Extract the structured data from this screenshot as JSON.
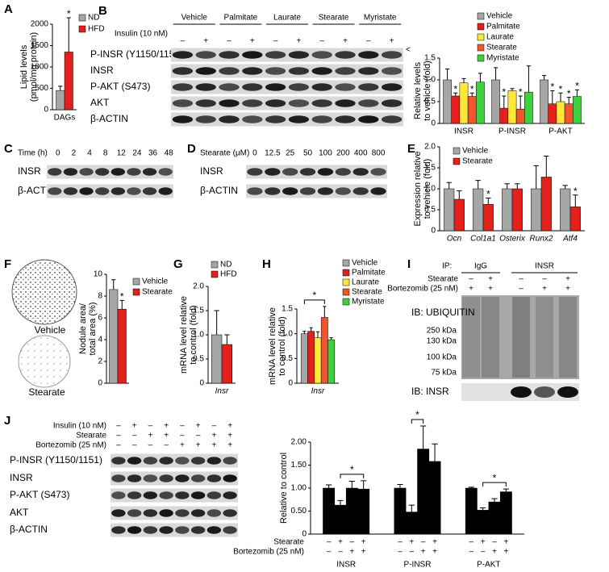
{
  "chart_data": [
    {
      "panel": "A",
      "type": "bar",
      "ylabel": [
        "Lipid levels",
        "(pmol/mg protein)"
      ],
      "categories": [
        "DAGs"
      ],
      "series": [
        {
          "name": "ND",
          "color": "#a6a6a6",
          "values": [
            450
          ],
          "errors": [
            100
          ]
        },
        {
          "name": "HFD",
          "color": "#e3201b",
          "values": [
            1350
          ],
          "errors": [
            800
          ],
          "annotations": [
            "*"
          ]
        }
      ],
      "ylim": [
        0,
        2000
      ],
      "yticks": [
        0,
        500,
        1000,
        1500,
        2000
      ]
    },
    {
      "type": "bar",
      "ylabel": [
        "Relative levels",
        "to vehicle (fold)"
      ],
      "categories": [
        "INSR",
        "P-INSR",
        "P-AKT"
      ],
      "series": [
        {
          "name": "Vehicle",
          "color": "#a6a6a6",
          "values": [
            1.0,
            1.0,
            1.0
          ],
          "errors": [
            0.25,
            0.28,
            0.1
          ]
        },
        {
          "name": "Palmitate",
          "color": "#e3201b",
          "values": [
            0.63,
            0.35,
            0.45
          ],
          "errors": [
            0.07,
            0.28,
            0.3
          ],
          "annotations": [
            "*",
            "*",
            "*"
          ]
        },
        {
          "name": "Laurate",
          "color": "#ffe83a",
          "values": [
            0.93,
            0.75,
            0.5
          ],
          "errors": [
            0.1,
            0.05,
            0.2
          ],
          "annotations": [
            null,
            null,
            "*"
          ]
        },
        {
          "name": "Stearate",
          "color": "#f2552c",
          "values": [
            0.62,
            0.33,
            0.45
          ],
          "errors": [
            0.08,
            0.3,
            0.15
          ],
          "annotations": [
            "*",
            "*",
            "*"
          ]
        },
        {
          "name": "Myristate",
          "color": "#3cd23c",
          "values": [
            0.95,
            0.72,
            0.62
          ],
          "errors": [
            0.2,
            0.6,
            0.15
          ],
          "annotations": [
            null,
            null,
            "*"
          ]
        }
      ],
      "ylim": [
        0,
        1.5
      ],
      "yticks": [
        0,
        0.5,
        {
          "value": 1,
          "label": "1.0"
        },
        1.5
      ]
    },
    {
      "panel": "E",
      "type": "bar",
      "ylabel": [
        "Expression relative",
        "to vehicle (fold)"
      ],
      "categories": [
        "Ocn",
        "Col1a1",
        "Osterix",
        "Runx2",
        "Atf4"
      ],
      "series": [
        {
          "name": "Vehicle",
          "color": "#a6a6a6",
          "values": [
            1.0,
            1.0,
            1.0,
            1.0,
            1.0
          ],
          "errors": [
            0.15,
            0.2,
            0.12,
            0.55,
            0.08
          ]
        },
        {
          "name": "Stearate",
          "color": "#e3201b",
          "values": [
            0.75,
            0.63,
            1.0,
            1.28,
            0.57
          ],
          "errors": [
            0.2,
            0.15,
            0.12,
            0.5,
            0.28
          ],
          "annotations": [
            null,
            "*",
            null,
            null,
            "*"
          ]
        }
      ],
      "ylim": [
        0,
        2
      ],
      "yticks": [
        0,
        0.5,
        {
          "value": 1,
          "label": "1.0"
        },
        1.5,
        {
          "value": 2,
          "label": "2.0"
        }
      ]
    },
    {
      "type": "bar",
      "ylabel": [
        "Nodule area/",
        "total area (%)"
      ],
      "categories": [
        null
      ],
      "series": [
        {
          "name": "Vehicle",
          "color": "#a6a6a6",
          "values": [
            8.6
          ],
          "errors": [
            0.9
          ]
        },
        {
          "name": "Stearate",
          "color": "#e3201b",
          "values": [
            6.8
          ],
          "errors": [
            0.8
          ],
          "annotations": [
            "*"
          ]
        }
      ],
      "ylim": [
        0,
        10
      ],
      "yticks": [
        0,
        2,
        4,
        6,
        8,
        10
      ]
    },
    {
      "panel": "G",
      "type": "bar",
      "ylabel": [
        "mRNA level relative",
        "to control (fold)"
      ],
      "categories": [
        "Insr"
      ],
      "series": [
        {
          "name": "ND",
          "color": "#a6a6a6",
          "values": [
            1.0
          ],
          "errors": [
            0.5
          ]
        },
        {
          "name": "HFD",
          "color": "#e3201b",
          "values": [
            0.8
          ],
          "errors": [
            0.2
          ]
        }
      ],
      "ylim": [
        0,
        2
      ],
      "yticks": [
        0,
        0.5,
        {
          "value": 1,
          "label": "1.0"
        },
        1.5,
        {
          "value": 2,
          "label": "2.0"
        }
      ]
    },
    {
      "panel": "H",
      "type": "bar",
      "ylabel": [
        "mRNA level relative",
        "to control (fold)"
      ],
      "categories": [
        "Insr"
      ],
      "series": [
        {
          "name": "Vehicle",
          "color": "#a6a6a6",
          "values": [
            1.0
          ],
          "errors": [
            0.05
          ]
        },
        {
          "name": "Palmitate",
          "color": "#e3201b",
          "values": [
            1.05
          ],
          "errors": [
            0.07
          ]
        },
        {
          "name": "Laurate",
          "color": "#ffe83a",
          "values": [
            0.92
          ],
          "errors": [
            0.12
          ]
        },
        {
          "name": "Stearate",
          "color": "#f2552c",
          "values": [
            1.33
          ],
          "errors": [
            0.22
          ]
        },
        {
          "name": "Myristate",
          "color": "#3cd23c",
          "values": [
            0.88
          ],
          "errors": [
            0.04
          ]
        }
      ],
      "brackets": [
        {
          "text": "*"
        }
      ],
      "ylim": [
        0,
        1.5
      ],
      "yticks": [
        0,
        0.5,
        {
          "value": 1,
          "label": "1.0"
        },
        1.5
      ]
    },
    {
      "type": "bar",
      "ylabel": [
        "Relative to control"
      ],
      "categories": [
        "INSR",
        "P-INSR",
        "P-AKT"
      ],
      "series": [
        {
          "color": "#000000",
          "values": [
            1.0,
            1.0,
            1.0
          ],
          "errors": [
            0.07,
            0.08,
            0.02
          ]
        },
        {
          "color": "#000000",
          "values": [
            0.63,
            0.48,
            0.52
          ],
          "errors": [
            0.1,
            0.15,
            0.05
          ]
        },
        {
          "color": "#000000",
          "values": [
            1.0,
            1.85,
            0.7
          ],
          "errors": [
            0.15,
            0.5,
            0.07
          ]
        },
        {
          "color": "#000000",
          "values": [
            0.98,
            1.58,
            0.92
          ],
          "errors": [
            0.18,
            0.38,
            0.06
          ]
        }
      ],
      "conditions": [
        {
          "label": "Stearate",
          "values": [
            "–",
            "+",
            "–",
            "+"
          ]
        },
        {
          "label": "Bortezomib (25 nM)",
          "values": [
            "–",
            "–",
            "+",
            "+"
          ]
        }
      ],
      "brackets": [
        {
          "text": "*"
        },
        {
          "text": "*"
        },
        {
          "text": "*"
        }
      ],
      "ylim": [
        0,
        2
      ],
      "yticks": [
        0,
        {
          "value": 0.5,
          "label": "0.50"
        },
        {
          "value": 1,
          "label": "1.00"
        },
        {
          "value": 1.5,
          "label": "1.50"
        },
        {
          "value": 2,
          "label": "2.00"
        }
      ]
    }
  ],
  "blots": {
    "B": {
      "panel": "B",
      "groups": [
        "Vehicle",
        "Palmitate",
        "Laurate",
        "Stearate",
        "Myristate"
      ],
      "condition": {
        "label": "Insulin (10 nM)",
        "values": [
          "–",
          "+",
          "–",
          "+",
          "–",
          "+",
          "–",
          "+",
          "–",
          "+"
        ]
      },
      "rows": [
        "P-INSR (Y1150/1151)",
        "INSR",
        "P-AKT (S473)",
        "AKT",
        "β-ACTIN"
      ],
      "marker": "<"
    },
    "C": {
      "panel": "C",
      "condition": {
        "label": "Time (h)",
        "values": [
          0,
          2,
          4,
          8,
          12,
          24,
          36,
          48
        ]
      },
      "rows": [
        "INSR",
        "β-ACTIN"
      ]
    },
    "D": {
      "panel": "D",
      "condition": {
        "label": "Stearate (μM)",
        "values": [
          0,
          12.5,
          25,
          50,
          100,
          200,
          400,
          800
        ]
      },
      "rows": [
        "INSR",
        "β-ACTIN"
      ]
    },
    "F": {
      "panel": "F",
      "images": [
        "Vehicle",
        "Stearate"
      ]
    },
    "I": {
      "panel": "I",
      "ip_label": "IP:",
      "groups": [
        "IgG",
        "INSR"
      ],
      "conditions": [
        {
          "label": "Stearate",
          "values": [
            "–",
            "+",
            "–",
            "–",
            "+"
          ]
        },
        {
          "label": "Bortezomib (25 nM)",
          "values": [
            "+",
            "+",
            "–",
            "+",
            "+"
          ]
        }
      ],
      "blots": [
        "IB: UBIQUITIN",
        "IB: INSR"
      ],
      "markers": [
        "250 kDa",
        "130 kDa",
        "100 kDa",
        "75 kDa"
      ]
    },
    "J": {
      "panel": "J",
      "conditions": [
        {
          "label": "Insulin (10 nM)",
          "values": [
            "–",
            "+",
            "–",
            "+",
            "–",
            "+",
            "–",
            "+"
          ]
        },
        {
          "label": "Stearate",
          "values": [
            "–",
            "–",
            "+",
            "+",
            "–",
            "–",
            "+",
            "+"
          ]
        },
        {
          "label": "Bortezomib (25 nM)",
          "values": [
            "–",
            "–",
            "–",
            "–",
            "+",
            "+",
            "+",
            "+"
          ]
        }
      ],
      "rows": [
        "P-INSR (Y1150/1151)",
        "INSR",
        "P-AKT (S473)",
        "AKT",
        "β-ACTIN"
      ]
    }
  }
}
